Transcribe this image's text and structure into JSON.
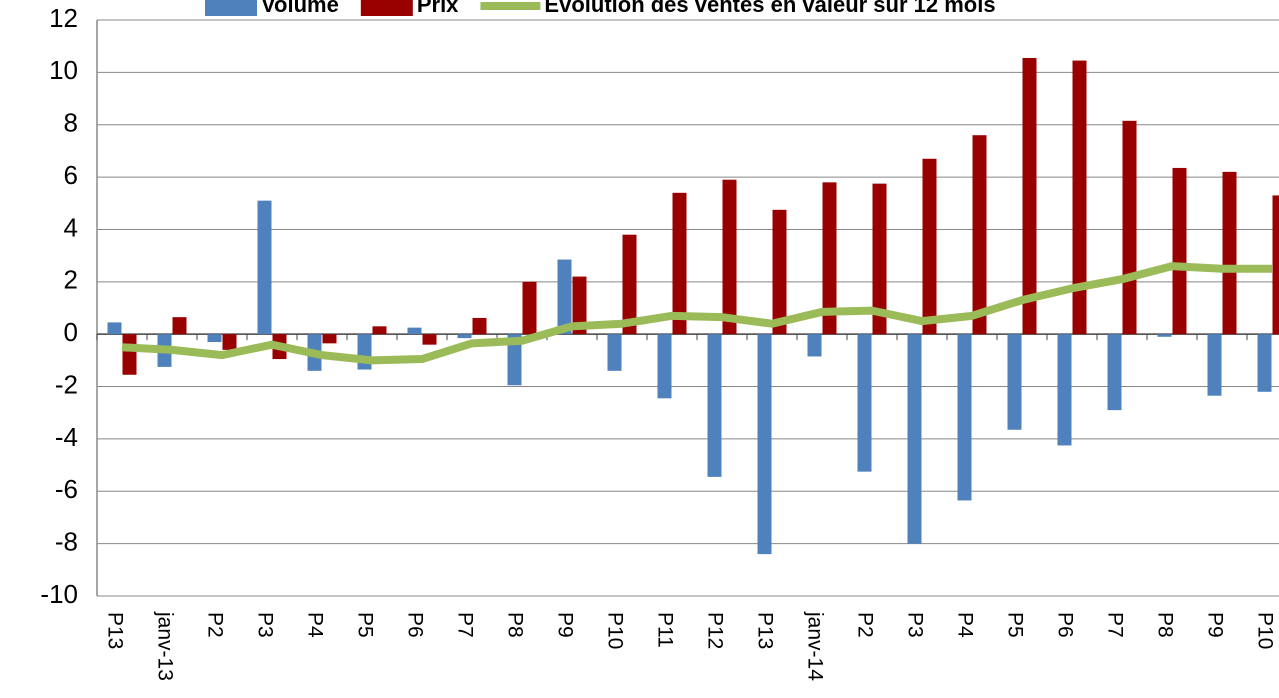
{
  "chart_data": {
    "type": "bar",
    "categories": [
      "P13",
      "janv-13",
      "P2",
      "P3",
      "P4",
      "P5",
      "P6",
      "P7",
      "P8",
      "P9",
      "P10",
      "P11",
      "P12",
      "P13",
      "janv-14",
      "P2",
      "P3",
      "P4",
      "P5",
      "P6",
      "P7",
      "P8",
      "P9",
      "P10"
    ],
    "series": [
      {
        "name": "Volume",
        "type": "bar",
        "color": "#4f81bd",
        "values": [
          0.45,
          -1.25,
          -0.3,
          5.1,
          -1.4,
          -1.35,
          0.25,
          -0.15,
          -1.95,
          2.85,
          -1.4,
          -2.45,
          -5.45,
          -8.4,
          -0.85,
          -5.25,
          -8.0,
          -6.35,
          -3.65,
          -4.25,
          -2.9,
          -0.1,
          -2.35,
          -2.2
        ]
      },
      {
        "name": "Prix",
        "type": "bar",
        "color": "#990000",
        "values": [
          -1.55,
          0.65,
          -0.6,
          -0.95,
          -0.35,
          0.3,
          -0.4,
          0.62,
          2.0,
          2.2,
          3.8,
          5.4,
          5.9,
          4.75,
          5.8,
          5.75,
          6.7,
          7.6,
          10.55,
          10.45,
          8.15,
          6.35,
          6.2,
          5.3
        ]
      },
      {
        "name": "Evolution des ventes en valeur sur 12 mois",
        "type": "line",
        "color": "#9bbb59",
        "values": [
          -0.5,
          -0.6,
          -0.8,
          -0.4,
          -0.8,
          -1.0,
          -0.95,
          -0.35,
          -0.25,
          0.3,
          0.4,
          0.7,
          0.65,
          0.4,
          0.85,
          0.9,
          0.5,
          0.7,
          1.3,
          1.75,
          2.1,
          2.6,
          2.5,
          2.5
        ]
      }
    ],
    "ylim": [
      -10,
      12
    ],
    "yticks": [
      -10,
      -8,
      -6,
      -4,
      -2,
      0,
      2,
      4,
      6,
      8,
      10,
      12
    ],
    "grid": true,
    "legend": "top"
  }
}
